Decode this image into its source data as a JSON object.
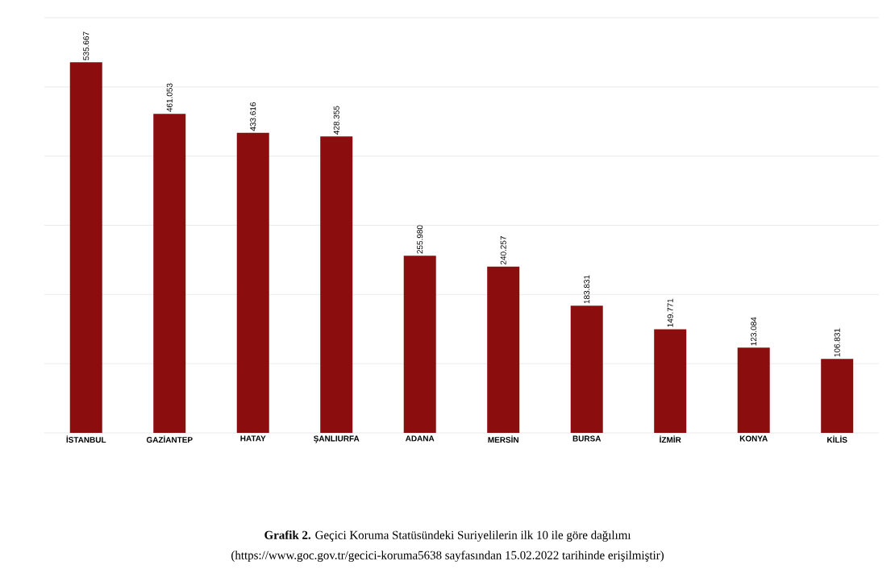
{
  "chart_data": {
    "type": "bar",
    "title": "**Grafik 2.** Geçici Koruma Statüsündeki Suriyelilerin ilk 10 ile göre dağılımı",
    "annotations": [
      "(https://www.goc.gov.tr/gecici-koruma5638 sayfasından 15.02.2022 tarihinde erişilmiştir)"
    ],
    "categories": [
      "İSTANBUL",
      "GAZİANTEP",
      "HATAY",
      "ŞANLIURFA",
      "ADANA",
      "MERSİN",
      "BURSA",
      "İZMİR",
      "KONYA",
      "KİLİS"
    ],
    "values": [
      535667,
      461053,
      433616,
      428355,
      255980,
      240257,
      183831,
      149771,
      123084,
      106831
    ],
    "value_labels": [
      "535.667",
      "461.053",
      "433.616",
      "428.355",
      "255.980",
      "240.257",
      "183.831",
      "149.771",
      "123.084",
      "106.831"
    ],
    "color": "#8b0d0d",
    "ylim": [
      0,
      600000
    ],
    "yticks": [
      {
        "value": 0,
        "label": null
      },
      {
        "value": 100000,
        "label": null
      },
      {
        "value": 200000,
        "label": null
      },
      {
        "value": 300000,
        "label": null
      },
      {
        "value": 400000,
        "label": null
      },
      {
        "value": 500000,
        "label": null
      },
      {
        "value": 600000,
        "label": null
      }
    ],
    "grid": "y"
  }
}
